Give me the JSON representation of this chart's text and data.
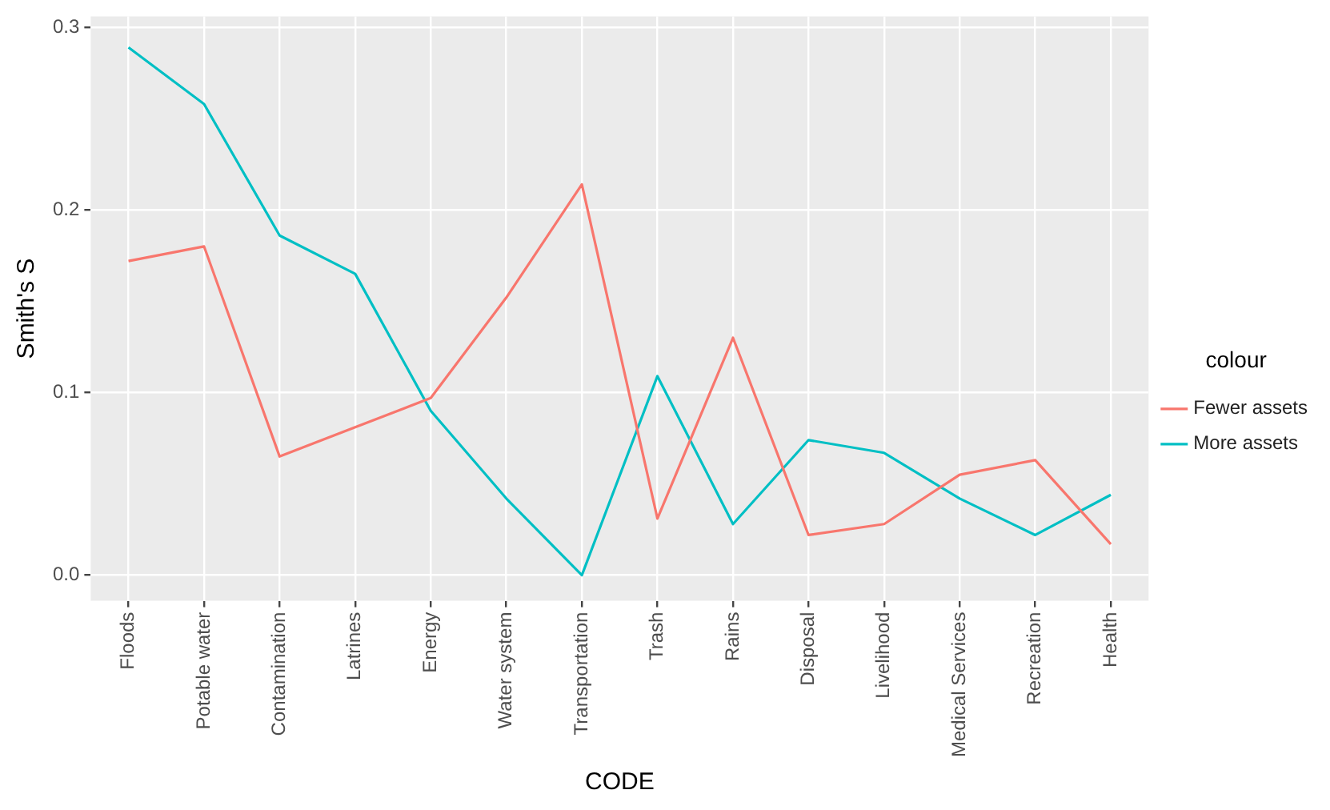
{
  "chart_data": {
    "type": "line",
    "xlabel": "CODE",
    "ylabel": "Smith's S",
    "legend_title": "colour",
    "categories": [
      "Floods",
      "Potable water",
      "Contamination",
      "Latrines",
      "Energy",
      "Water system",
      "Transportation",
      "Trash",
      "Rains",
      "Disposal",
      "Livelihood",
      "Medical Services",
      "Recreation",
      "Health"
    ],
    "series": [
      {
        "name": "Fewer assets",
        "color": "#f8766d",
        "values": [
          0.172,
          0.18,
          0.065,
          0.081,
          0.097,
          0.152,
          0.214,
          0.031,
          0.13,
          0.022,
          0.028,
          0.055,
          0.063,
          0.017
        ]
      },
      {
        "name": "More assets",
        "color": "#00bfc4",
        "values": [
          0.289,
          0.258,
          0.186,
          0.165,
          0.09,
          0.042,
          0.0,
          0.109,
          0.028,
          0.074,
          0.067,
          0.042,
          0.022,
          0.044
        ]
      }
    ],
    "ylim": [
      -0.014,
      0.306
    ],
    "yticks": [
      {
        "value": 0,
        "label": "0.0"
      },
      0.1,
      0.2,
      0.3
    ],
    "grid": true,
    "legend": "right",
    "marker": "none",
    "line_style": "solid"
  }
}
